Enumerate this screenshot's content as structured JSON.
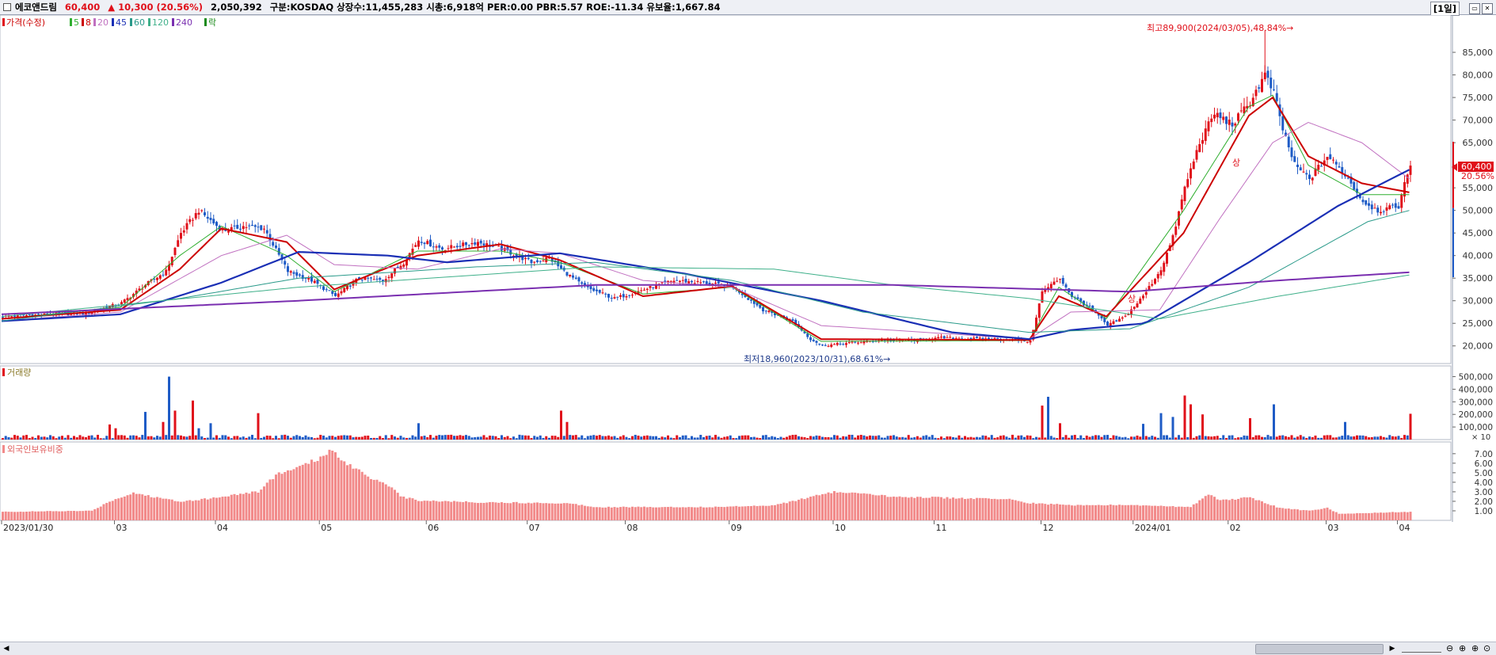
{
  "header": {
    "stock_name": "에코앤드림",
    "price": "60,400",
    "change_arrow": "▲",
    "change": "10,300",
    "change_pct": "(20.56%)",
    "volume": "2,050,392",
    "market": "구분:KOSDAQ",
    "listed_shares": "상장수:11,455,283",
    "market_cap": "시총:6,918억",
    "per": "PER:0.00",
    "pbr": "PBR:5.57",
    "roe": "ROE:-11.34",
    "turnover": "유보율:1,667.84",
    "period": "[1일]"
  },
  "colors": {
    "up": "#e0101a",
    "down": "#1e5bc6",
    "ma5": "#2fae2f",
    "ma8": "#cc0000",
    "ma20": "#c070c0",
    "ma45": "#1a2fb5",
    "ma60": "#2a9a8a",
    "ma120": "#3fb08a",
    "ma240": "#7a2fb0",
    "foreign": "#f28a8a"
  },
  "price_panel": {
    "legend": {
      "price": "가격(수정)",
      "ma5": "5",
      "ma8": "8",
      "ma20": "20",
      "ma45": "45",
      "ma60": "60",
      "ma120": "120",
      "ma240": "240",
      "rak": "락"
    },
    "high_annotation": "최고89,900(2024/03/05),48.84%→",
    "low_annotation": "최저18,960(2023/10/31),68.61%→",
    "last_price_label": "60,400",
    "last_pct_label": "20.56%",
    "event_mark_1": "상",
    "event_mark_2": "상"
  },
  "volume_panel": {
    "title": "거래량",
    "unit": "× 10"
  },
  "foreign_panel": {
    "title": "외국인보유비중"
  },
  "x_axis_labels": [
    "2023/01/30",
    "03",
    "04",
    "05",
    "06",
    "07",
    "08",
    "09",
    "10",
    "11",
    "12",
    "2024/01",
    "02",
    "03",
    "04"
  ],
  "chart_data": [
    {
      "type": "candlestick",
      "title": "가격(수정)",
      "ylim": [
        17500,
        91500
      ],
      "y_ticks": [
        20000,
        25000,
        30000,
        35000,
        40000,
        45000,
        50000,
        55000,
        60000,
        65000,
        70000,
        75000,
        80000,
        85000
      ],
      "y_tick_labels": [
        "20,000",
        "25,000",
        "30,000",
        "35,000",
        "40,000",
        "45,000",
        "50,000",
        "55,000",
        "60,000",
        "65,000",
        "70,000",
        "75,000",
        "80,000",
        "85,000"
      ],
      "close_path": [
        [
          0,
          26500
        ],
        [
          15,
          27000
        ],
        [
          28,
          27200
        ],
        [
          40,
          29500
        ],
        [
          48,
          33500
        ],
        [
          55,
          36500
        ],
        [
          60,
          45000
        ],
        [
          66,
          50000
        ],
        [
          74,
          45500
        ],
        [
          81,
          46500
        ],
        [
          88,
          46000
        ],
        [
          96,
          36500
        ],
        [
          104,
          34500
        ],
        [
          112,
          31000
        ],
        [
          120,
          35000
        ],
        [
          128,
          34500
        ],
        [
          135,
          38500
        ],
        [
          140,
          43500
        ],
        [
          148,
          41500
        ],
        [
          160,
          43000
        ],
        [
          168,
          41500
        ],
        [
          178,
          38500
        ],
        [
          184,
          39500
        ],
        [
          188,
          37000
        ],
        [
          196,
          33000
        ],
        [
          206,
          30500
        ],
        [
          216,
          32500
        ],
        [
          226,
          34500
        ],
        [
          236,
          34000
        ],
        [
          246,
          33000
        ],
        [
          256,
          28000
        ],
        [
          266,
          25500
        ],
        [
          272,
          21500
        ],
        [
          276,
          20100
        ],
        [
          286,
          20700
        ],
        [
          296,
          21300
        ],
        [
          306,
          21200
        ],
        [
          316,
          21800
        ],
        [
          326,
          21600
        ],
        [
          338,
          21500
        ],
        [
          346,
          21000
        ],
        [
          350,
          32000
        ],
        [
          356,
          35000
        ],
        [
          360,
          31000
        ],
        [
          366,
          28500
        ],
        [
          372,
          24500
        ],
        [
          378,
          26500
        ],
        [
          384,
          31000
        ],
        [
          390,
          37000
        ],
        [
          394,
          44000
        ],
        [
          398,
          55000
        ],
        [
          403,
          65000
        ],
        [
          408,
          71500
        ],
        [
          414,
          69000
        ],
        [
          420,
          74000
        ],
        [
          425,
          80000
        ],
        [
          428,
          76000
        ],
        [
          431,
          68000
        ],
        [
          435,
          60000
        ],
        [
          440,
          57000
        ],
        [
          446,
          62000
        ],
        [
          452,
          58000
        ],
        [
          458,
          52000
        ],
        [
          463,
          50000
        ],
        [
          467,
          50500
        ],
        [
          470,
          51000
        ],
        [
          474,
          60400
        ]
      ],
      "high": {
        "value": 89900,
        "date": "2024/03/05"
      },
      "low": {
        "value": 18960,
        "date": "2023/10/31"
      },
      "last": 60400,
      "series": [
        {
          "name": "5",
          "pts": [
            [
              0,
              26000
            ],
            [
              40,
              28500
            ],
            [
              60,
              40000
            ],
            [
              74,
              46500
            ],
            [
              96,
              40000
            ],
            [
              112,
              32000
            ],
            [
              140,
              41000
            ],
            [
              168,
              41000
            ],
            [
              188,
              38500
            ],
            [
              216,
              31500
            ],
            [
              246,
              33000
            ],
            [
              276,
              21000
            ],
            [
              346,
              21200
            ],
            [
              356,
              33000
            ],
            [
              372,
              26000
            ],
            [
              398,
              50000
            ],
            [
              420,
              73000
            ],
            [
              428,
              75500
            ],
            [
              440,
              60000
            ],
            [
              458,
              53500
            ],
            [
              474,
              53500
            ]
          ]
        },
        {
          "name": "8",
          "pts": [
            [
              0,
              26000
            ],
            [
              40,
              28000
            ],
            [
              60,
              37000
            ],
            [
              74,
              46000
            ],
            [
              96,
              43000
            ],
            [
              112,
              32500
            ],
            [
              140,
              40000
            ],
            [
              168,
              42500
            ],
            [
              188,
              39000
            ],
            [
              216,
              31000
            ],
            [
              246,
              33200
            ],
            [
              276,
              21500
            ],
            [
              346,
              21300
            ],
            [
              356,
              31000
            ],
            [
              372,
              26500
            ],
            [
              398,
              45000
            ],
            [
              420,
              71000
            ],
            [
              428,
              75000
            ],
            [
              440,
              62000
            ],
            [
              458,
              56000
            ],
            [
              474,
              54000
            ]
          ]
        },
        {
          "name": "20",
          "pts": [
            [
              0,
              25500
            ],
            [
              40,
              27500
            ],
            [
              74,
              40000
            ],
            [
              96,
              44500
            ],
            [
              112,
              38000
            ],
            [
              140,
              37000
            ],
            [
              168,
              41500
            ],
            [
              188,
              40500
            ],
            [
              216,
              34500
            ],
            [
              246,
              33000
            ],
            [
              276,
              24500
            ],
            [
              346,
              21500
            ],
            [
              360,
              27500
            ],
            [
              390,
              28000
            ],
            [
              410,
              48000
            ],
            [
              428,
              65000
            ],
            [
              440,
              69500
            ],
            [
              458,
              65000
            ],
            [
              474,
              57000
            ]
          ]
        },
        {
          "name": "45",
          "pts": [
            [
              0,
              25500
            ],
            [
              40,
              27000
            ],
            [
              74,
              34000
            ],
            [
              100,
              40800
            ],
            [
              130,
              40000
            ],
            [
              150,
              38500
            ],
            [
              188,
              40500
            ],
            [
              230,
              36000
            ],
            [
              276,
              30000
            ],
            [
              320,
              23000
            ],
            [
              346,
              21500
            ],
            [
              360,
              23500
            ],
            [
              385,
              25000
            ],
            [
              420,
              38500
            ],
            [
              450,
              51000
            ],
            [
              474,
              59000
            ]
          ]
        },
        {
          "name": "60",
          "pts": [
            [
              0,
              25500
            ],
            [
              60,
              30500
            ],
            [
              100,
              35000
            ],
            [
              160,
              37500
            ],
            [
              200,
              38500
            ],
            [
              246,
              34500
            ],
            [
              290,
              27500
            ],
            [
              346,
              23000
            ],
            [
              380,
              23800
            ],
            [
              420,
              33000
            ],
            [
              460,
              47500
            ],
            [
              474,
              50000
            ]
          ]
        },
        {
          "name": "120",
          "pts": [
            [
              0,
              26500
            ],
            [
              100,
              33000
            ],
            [
              200,
              37500
            ],
            [
              260,
              37000
            ],
            [
              300,
              33500
            ],
            [
              346,
              30500
            ],
            [
              390,
              26000
            ],
            [
              430,
              31000
            ],
            [
              474,
              35700
            ]
          ]
        },
        {
          "name": "240",
          "pts": [
            [
              0,
              27000
            ],
            [
              100,
              30000
            ],
            [
              200,
              33500
            ],
            [
              300,
              33500
            ],
            [
              380,
              32000
            ],
            [
              430,
              34500
            ],
            [
              474,
              36300
            ]
          ]
        }
      ]
    },
    {
      "type": "bar",
      "title": "거래량",
      "ylim": [
        0,
        560000
      ],
      "y_ticks": [
        100000,
        200000,
        300000,
        400000,
        500000
      ],
      "y_tick_labels": [
        "100,000",
        "200,000",
        "300,000",
        "400,000",
        "500,000"
      ],
      "spikes": [
        [
          34,
          10000
        ],
        [
          36,
          120000
        ],
        [
          38,
          90000
        ],
        [
          48,
          220000
        ],
        [
          54,
          140000
        ],
        [
          56,
          500000
        ],
        [
          58,
          230000
        ],
        [
          64,
          310000
        ],
        [
          66,
          90000
        ],
        [
          70,
          130000
        ],
        [
          86,
          210000
        ],
        [
          140,
          130000
        ],
        [
          188,
          230000
        ],
        [
          190,
          140000
        ],
        [
          350,
          270000
        ],
        [
          352,
          340000
        ],
        [
          356,
          130000
        ],
        [
          384,
          125000
        ],
        [
          390,
          210000
        ],
        [
          394,
          180000
        ],
        [
          398,
          350000
        ],
        [
          400,
          280000
        ],
        [
          404,
          200000
        ],
        [
          420,
          170000
        ],
        [
          428,
          280000
        ],
        [
          452,
          140000
        ],
        [
          474,
          205000
        ]
      ],
      "baseline_level": 35000
    },
    {
      "type": "bar",
      "title": "외국인보유비중",
      "ylim": [
        0,
        7.9
      ],
      "y_ticks": [
        1,
        2,
        3,
        4,
        5,
        6,
        7
      ],
      "y_tick_labels": [
        "1.00",
        "2.00",
        "3.00",
        "4.00",
        "5.00",
        "6.00",
        "7.00"
      ],
      "pts": [
        [
          0,
          0.9
        ],
        [
          30,
          1.0
        ],
        [
          36,
          2.0
        ],
        [
          44,
          2.9
        ],
        [
          50,
          2.5
        ],
        [
          60,
          2.0
        ],
        [
          70,
          2.3
        ],
        [
          78,
          2.7
        ],
        [
          86,
          3.0
        ],
        [
          92,
          4.8
        ],
        [
          100,
          5.6
        ],
        [
          106,
          6.4
        ],
        [
          110,
          7.4
        ],
        [
          116,
          6.0
        ],
        [
          124,
          4.5
        ],
        [
          130,
          3.7
        ],
        [
          134,
          2.5
        ],
        [
          140,
          2.1
        ],
        [
          160,
          1.9
        ],
        [
          190,
          1.8
        ],
        [
          200,
          1.4
        ],
        [
          240,
          1.4
        ],
        [
          260,
          1.6
        ],
        [
          270,
          2.3
        ],
        [
          280,
          3.0
        ],
        [
          300,
          2.5
        ],
        [
          340,
          2.2
        ],
        [
          346,
          1.8
        ],
        [
          360,
          1.6
        ],
        [
          380,
          1.6
        ],
        [
          400,
          1.4
        ],
        [
          406,
          2.8
        ],
        [
          410,
          2.1
        ],
        [
          420,
          2.4
        ],
        [
          430,
          1.3
        ],
        [
          440,
          1.0
        ],
        [
          446,
          1.3
        ],
        [
          450,
          0.7
        ],
        [
          474,
          0.9
        ]
      ]
    }
  ]
}
